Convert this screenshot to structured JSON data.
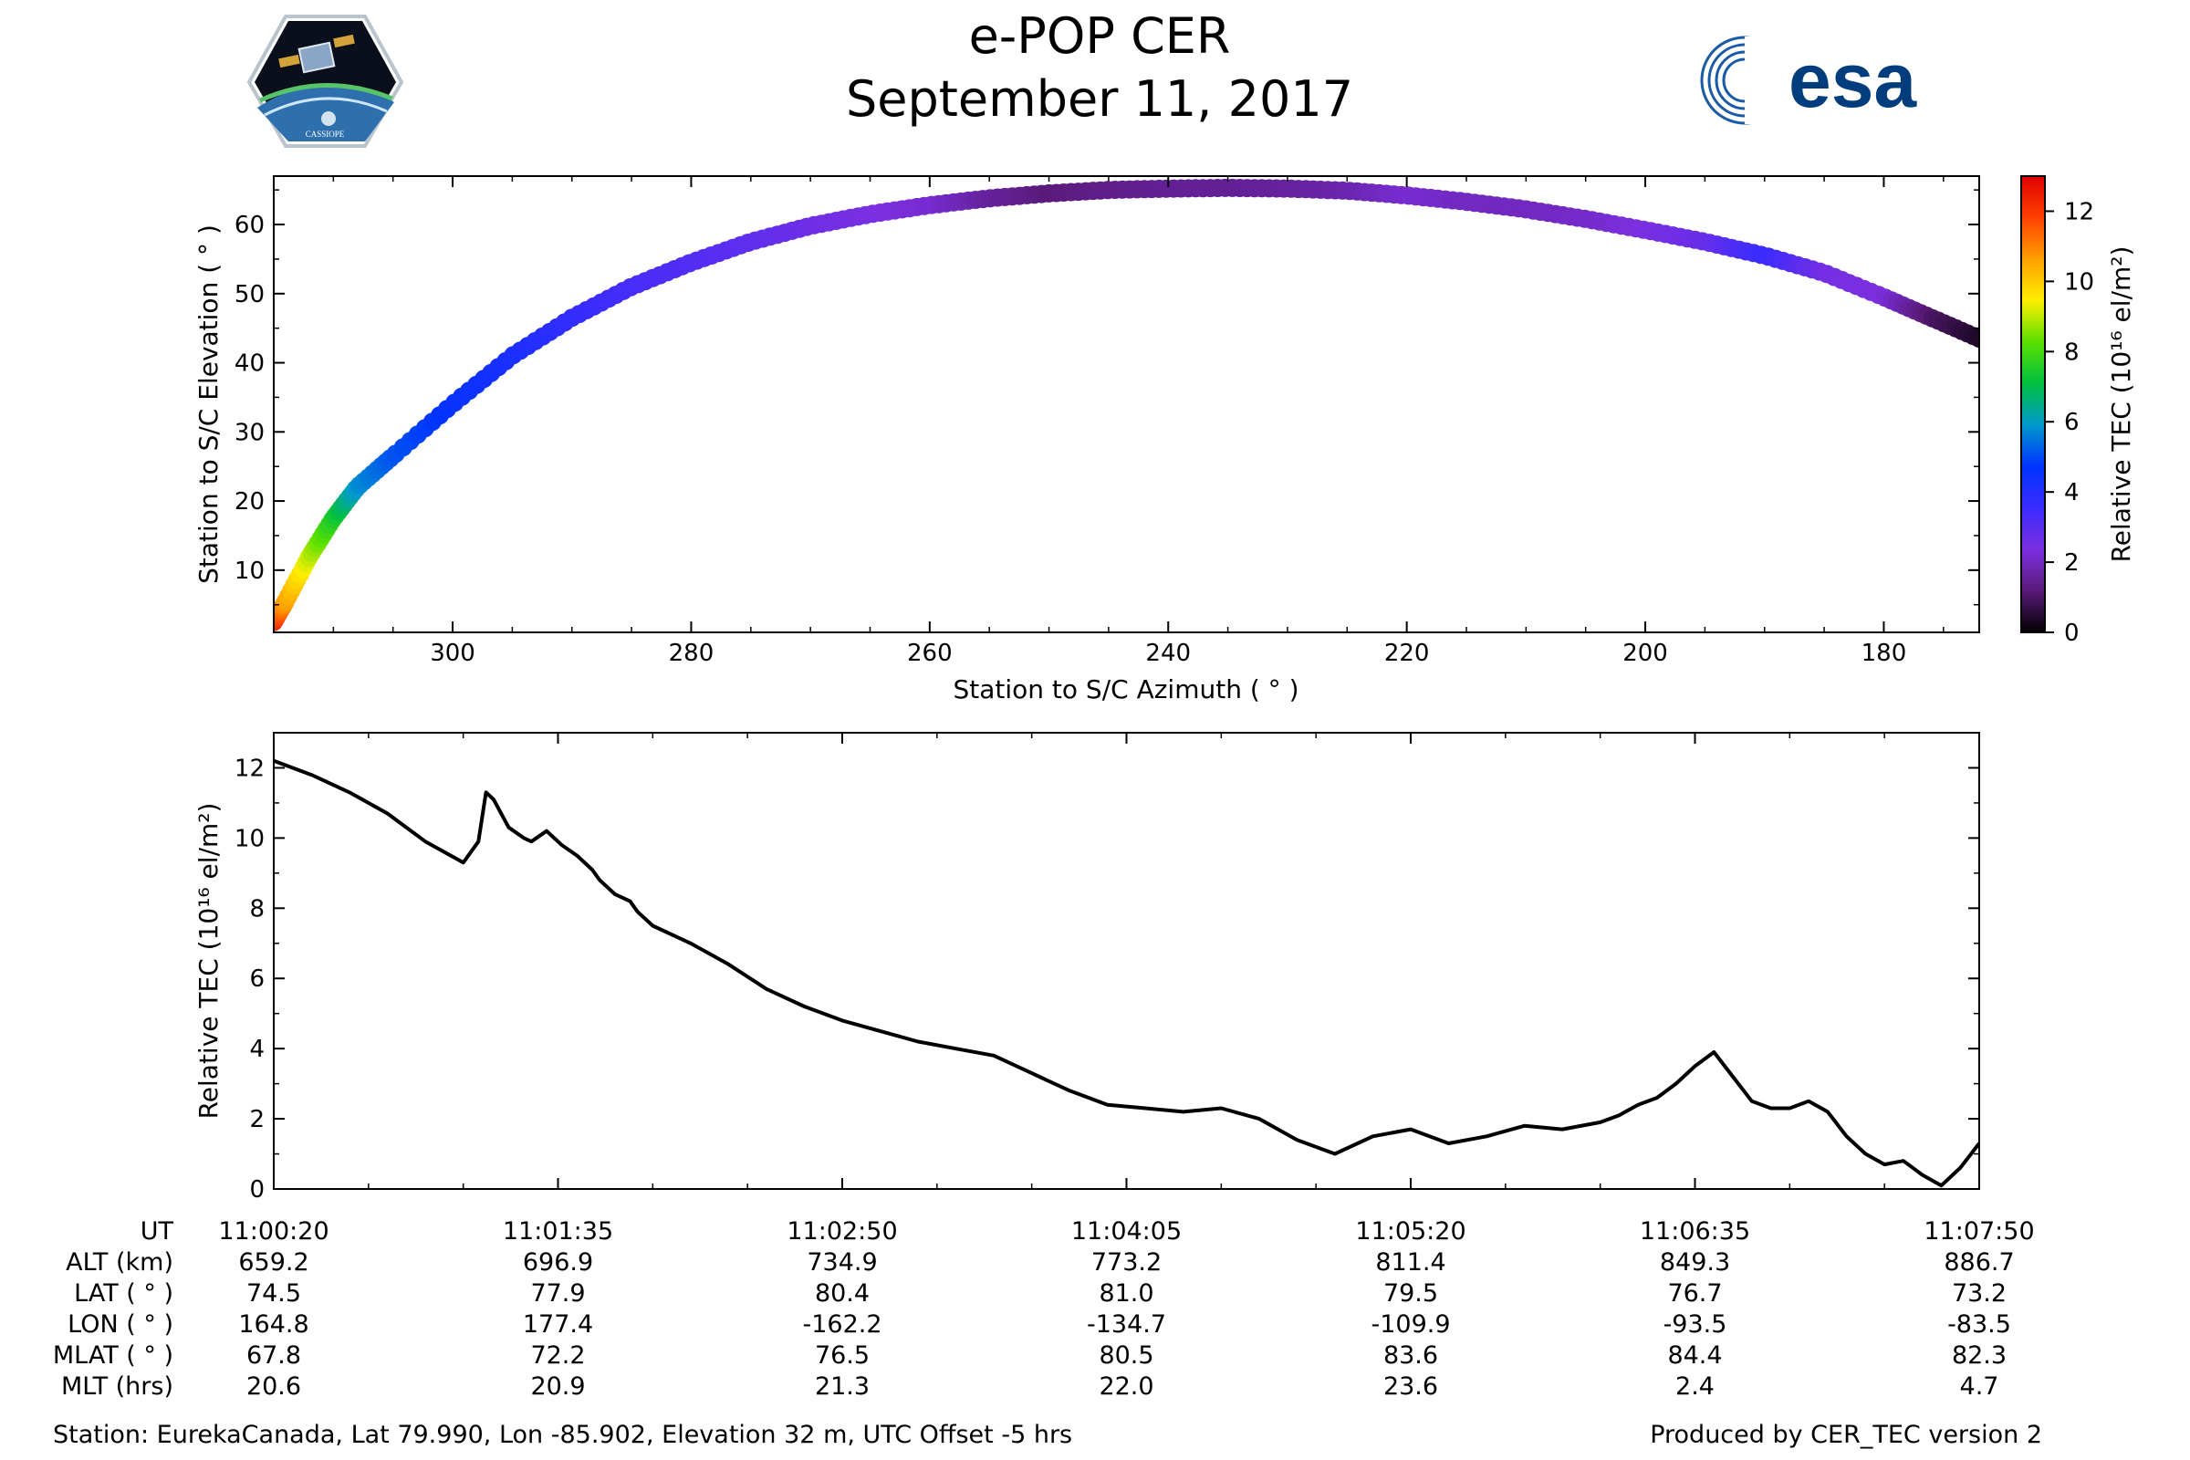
{
  "header": {
    "title": "e-POP CER",
    "date": "September 11, 2017",
    "left_logo": {
      "icon": "cassiope-mission-patch-icon",
      "text": "CASSIOPE"
    },
    "right_logo": {
      "icon": "esa-logo-icon",
      "text": "esa",
      "color": "#003d7d"
    }
  },
  "chart_data": [
    {
      "type": "scatter",
      "title": "",
      "xlabel": "Station to S/C Azimuth ( ° )",
      "ylabel": "Station to S/C Elevation ( ° )",
      "xlim": [
        315,
        172
      ],
      "ylim": [
        1,
        67
      ],
      "x_ticks": [
        300,
        280,
        260,
        240,
        220,
        200,
        180
      ],
      "y_ticks": [
        10,
        20,
        30,
        40,
        50,
        60
      ],
      "color_by": "Relative TEC",
      "track": {
        "x": [
          315,
          314,
          312,
          310,
          308,
          305,
          300,
          295,
          290,
          285,
          280,
          275,
          270,
          265,
          260,
          255,
          250,
          245,
          240,
          235,
          230,
          225,
          220,
          215,
          210,
          205,
          200,
          195,
          190,
          185,
          180,
          176,
          172
        ],
        "y": [
          2.5,
          5.5,
          12,
          17.5,
          22,
          26.5,
          34,
          41,
          46.5,
          51,
          54.5,
          57.5,
          59.8,
          61.5,
          62.8,
          63.8,
          64.5,
          65,
          65.2,
          65.3,
          65.2,
          64.9,
          64.2,
          63.3,
          62.2,
          60.8,
          59.2,
          57.5,
          55.5,
          53,
          49.5,
          46.5,
          43.5
        ],
        "tec": [
          12.2,
          10.6,
          9,
          7.5,
          5.8,
          5.1,
          4.6,
          4.2,
          3.7,
          3.3,
          3.1,
          2.9,
          2.6,
          2.4,
          2.2,
          1.6,
          1.2,
          1.4,
          1.5,
          1.5,
          1.6,
          1.8,
          2.2,
          2.0,
          2.0,
          2.1,
          2.4,
          2.7,
          3.6,
          2.5,
          2.3,
          1.0,
          0.4
        ]
      },
      "colorbar": {
        "label": "Relative TEC (10¹⁶ el/m²)",
        "range": [
          0,
          13
        ],
        "ticks": [
          0,
          2,
          4,
          6,
          8,
          10,
          12
        ],
        "stops": [
          "#000000",
          "#5a1a78",
          "#7b2fe0",
          "#3a2cff",
          "#0033ff",
          "#0099cc",
          "#00c040",
          "#5ae000",
          "#ffee00",
          "#ffa000",
          "#ff4000",
          "#e00000"
        ]
      }
    },
    {
      "type": "line",
      "title": "",
      "xlabel": "",
      "ylabel": "Relative TEC (10¹⁶ el/m²)",
      "xlim": [
        0,
        450
      ],
      "ylim": [
        0,
        13
      ],
      "y_ticks": [
        0,
        2,
        4,
        6,
        8,
        10,
        12
      ],
      "x_unit": "seconds after 11:00:20",
      "series": [
        {
          "name": "Relative TEC",
          "x": [
            0,
            10,
            20,
            30,
            40,
            50,
            54,
            56,
            58,
            62,
            66,
            68,
            72,
            76,
            80,
            84,
            86,
            88,
            90,
            94,
            96,
            100,
            110,
            120,
            130,
            140,
            150,
            160,
            170,
            180,
            190,
            200,
            210,
            220,
            230,
            240,
            250,
            260,
            270,
            280,
            290,
            300,
            310,
            320,
            330,
            340,
            350,
            355,
            360,
            365,
            370,
            375,
            380,
            385,
            390,
            395,
            400,
            405,
            410,
            415,
            420,
            425,
            430,
            435,
            440,
            445,
            450
          ],
          "y": [
            12.2,
            11.8,
            11.3,
            10.7,
            9.9,
            9.3,
            9.9,
            11.3,
            11.1,
            10.3,
            10.0,
            9.9,
            10.2,
            9.8,
            9.5,
            9.1,
            8.8,
            8.6,
            8.4,
            8.2,
            7.9,
            7.5,
            7.0,
            6.4,
            5.7,
            5.2,
            4.8,
            4.5,
            4.2,
            4.0,
            3.8,
            3.3,
            2.8,
            2.4,
            2.3,
            2.2,
            2.3,
            2.0,
            1.4,
            1.0,
            1.5,
            1.7,
            1.3,
            1.5,
            1.8,
            1.7,
            1.9,
            2.1,
            2.4,
            2.6,
            3.0,
            3.5,
            3.9,
            3.2,
            2.5,
            2.3,
            2.3,
            2.5,
            2.2,
            1.5,
            1.0,
            0.7,
            0.8,
            0.4,
            0.1,
            0.6,
            1.3
          ]
        }
      ]
    }
  ],
  "orbit_table": {
    "rows": [
      {
        "label": "UT",
        "values": [
          "11:00:20",
          "11:01:35",
          "11:02:50",
          "11:04:05",
          "11:05:20",
          "11:06:35",
          "11:07:50"
        ]
      },
      {
        "label": "ALT (km)",
        "values": [
          "659.2",
          "696.9",
          "734.9",
          "773.2",
          "811.4",
          "849.3",
          "886.7"
        ]
      },
      {
        "label": "LAT ( ° )",
        "values": [
          "74.5",
          "77.9",
          "80.4",
          "81.0",
          "79.5",
          "76.7",
          "73.2"
        ]
      },
      {
        "label": "LON ( ° )",
        "values": [
          "164.8",
          "177.4",
          "-162.2",
          "-134.7",
          "-109.9",
          "-93.5",
          "-83.5"
        ]
      },
      {
        "label": "MLAT ( ° )",
        "values": [
          "67.8",
          "72.2",
          "76.5",
          "80.5",
          "83.6",
          "84.4",
          "82.3"
        ]
      },
      {
        "label": "MLT (hrs)",
        "values": [
          "20.6",
          "20.9",
          "21.3",
          "22.0",
          "23.6",
          "2.4",
          "4.7"
        ]
      }
    ]
  },
  "footer": {
    "station": "Station: EurekaCanada, Lat 79.990, Lon -85.902, Elevation 32 m, UTC Offset -5 hrs",
    "produced_by": "Produced by CER_TEC version 2"
  }
}
